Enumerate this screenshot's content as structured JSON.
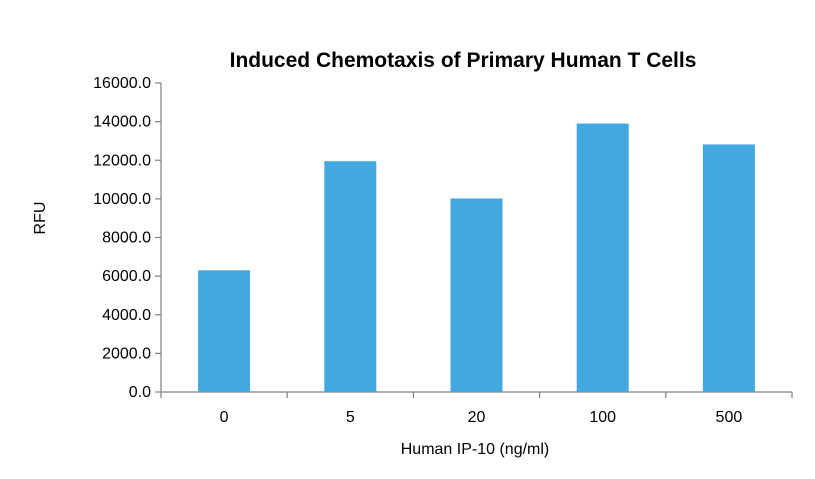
{
  "chart_data": {
    "type": "bar",
    "title": "Induced Chemotaxis of Primary Human T Cells",
    "xlabel": "Human IP-10 (ng/ml)",
    "ylabel": "RFU",
    "categories": [
      "0",
      "5",
      "20",
      "100",
      "500"
    ],
    "values": [
      6300,
      11950,
      10020,
      13900,
      12820
    ],
    "ylim": [
      0,
      16000
    ],
    "yticks": [
      0,
      2000,
      4000,
      6000,
      8000,
      10000,
      12000,
      14000,
      16000
    ],
    "ytick_labels": [
      "0.0",
      "2000.0",
      "4000.0",
      "6000.0",
      "8000.0",
      "10000.0",
      "12000.0",
      "14000.0",
      "16000.0"
    ],
    "bar_color": "#42a8df",
    "grid": false,
    "legend": "none"
  }
}
